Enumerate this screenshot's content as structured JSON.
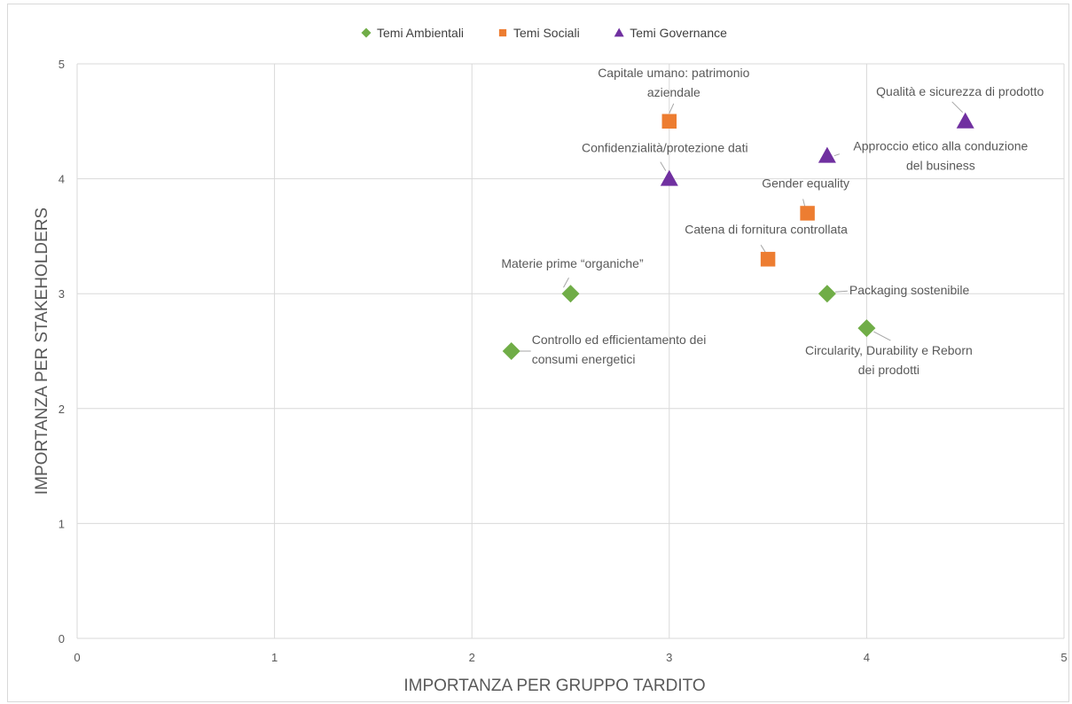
{
  "chart_data": {
    "type": "scatter",
    "title": "",
    "xlabel": "IMPORTANZA PER GRUPPO TARDITO",
    "ylabel": "IMPORTANZA PER STAKEHOLDERS",
    "xlim": [
      0,
      5
    ],
    "ylim": [
      0,
      5
    ],
    "x_ticks": [
      "0",
      "1",
      "2",
      "3",
      "4",
      "5"
    ],
    "y_ticks": [
      "0",
      "1",
      "2",
      "3",
      "4",
      "5"
    ],
    "grid": true,
    "legend_position": "top",
    "series": [
      {
        "name": "Temi Ambientali",
        "marker": "diamond",
        "color": "#70ad47",
        "points": [
          {
            "x": 2.5,
            "y": 3.0,
            "label": [
              "Materie prime “organiche”"
            ]
          },
          {
            "x": 2.2,
            "y": 2.5,
            "label": [
              "Controllo ed efficientamento dei",
              "consumi energetici"
            ]
          },
          {
            "x": 3.8,
            "y": 3.0,
            "label": [
              "Packaging sostenibile"
            ]
          },
          {
            "x": 4.0,
            "y": 2.7,
            "label": [
              "Circularity, Durability e Reborn",
              "dei prodotti"
            ]
          }
        ]
      },
      {
        "name": "Temi Sociali",
        "marker": "square",
        "color": "#ed7d31",
        "points": [
          {
            "x": 3.0,
            "y": 4.5,
            "label": [
              "Capitale umano: patrimonio",
              "aziendale"
            ]
          },
          {
            "x": 3.7,
            "y": 3.7,
            "label": [
              "Gender equality"
            ]
          },
          {
            "x": 3.5,
            "y": 3.3,
            "label": [
              "Catena di fornitura controllata"
            ]
          }
        ]
      },
      {
        "name": "Temi Governance",
        "marker": "triangle",
        "color": "#7030a0",
        "points": [
          {
            "x": 4.5,
            "y": 4.5,
            "label": [
              "Qualità e sicurezza di prodotto"
            ]
          },
          {
            "x": 3.8,
            "y": 4.2,
            "label": [
              "Approccio etico alla conduzione",
              "del business"
            ]
          },
          {
            "x": 3.0,
            "y": 4.0,
            "label": [
              "Confidenzialità/protezione dati"
            ]
          }
        ]
      }
    ]
  }
}
